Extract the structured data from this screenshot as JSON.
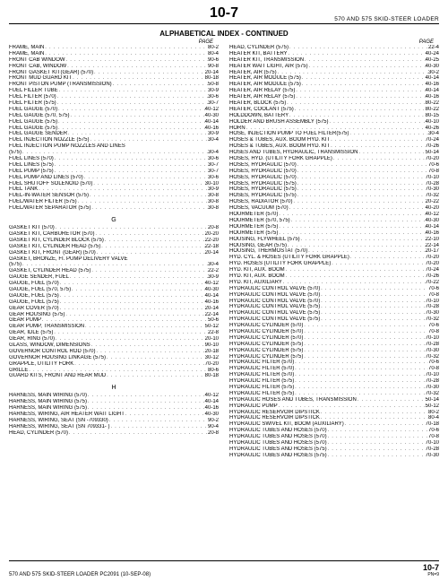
{
  "header": {
    "page_number_top": "10-7",
    "doc_title": "570 AND 575 SKID-STEER LOADER",
    "section_title": "ALPHABETICAL INDEX - CONTINUED",
    "page_label": "PAGE"
  },
  "left": {
    "groups": [
      {
        "letter": null,
        "rows": [
          [
            "FRAME, MAIN",
            "80-2"
          ],
          [
            "FRAME, MAIN",
            "80-4"
          ],
          [
            "FRONT CAB WINDOW",
            "90-6"
          ],
          [
            "FRONT CAB, WINDOW",
            "90-8"
          ],
          [
            "FRONT GASKET KIT(GEAR) (570)",
            "20-14"
          ],
          [
            "FRONT MUD GUARD KIT",
            "80-18"
          ],
          [
            "FRONT PISTON PUMP (TRANSMISSION)",
            "50-8"
          ],
          [
            "FUEL FILLER TUBE",
            "30-9"
          ],
          [
            "FUEL FILTER (570)",
            "30-6"
          ],
          [
            "FUEL FILTER (575)",
            "30-7"
          ],
          [
            "FUEL GAUGE (570)",
            "40-12"
          ],
          [
            "FUEL GAUGE (570, 575)",
            "40-30"
          ],
          [
            "FUEL GAUGE (575)",
            "40-14"
          ],
          [
            "FUEL GAUGE (575)",
            "40-16"
          ],
          [
            "FUEL GAUGE SENDER",
            "30-9"
          ],
          [
            "FUEL INJECTION NOZZLE (575)",
            "30-4"
          ],
          [
            "FUEL INJECTION PUMP NOZZLES AND LINES",
            ""
          ],
          [
            "  (575)",
            "30-4"
          ],
          [
            "FUEL LINES (570)",
            "30-6"
          ],
          [
            "FUEL LINES (575)",
            "30-7"
          ],
          [
            "FUEL PUMP (575)",
            "30-7"
          ],
          [
            "FUEL PUMP AND LINES (570)",
            "30-6"
          ],
          [
            "FUEL SHUTOFF SOLENOID (570)",
            "30-10"
          ],
          [
            "FUEL TANK",
            "30-9"
          ],
          [
            "FUEL-IN-WATER SENSOR (575)",
            "30-8"
          ],
          [
            "FUEL/WATER FILTER (575)",
            "30-8"
          ],
          [
            "FUEL/WATER SEPARATOR (575)",
            "30-8"
          ]
        ]
      },
      {
        "letter": "G",
        "rows": [
          [
            "GASKET KIT (570)",
            "20-8"
          ],
          [
            "GASKET KIT, CARBURETOR (570)",
            "20-20"
          ],
          [
            "GASKET KIT, CYLINDER BLOCK (575)",
            "22-20"
          ],
          [
            "GASKET KIT, CYLINDER HEAD (575)",
            "22-18"
          ],
          [
            "GASKET KIT, FRONT (GEAR) (570)",
            "20-14"
          ],
          [
            "GASKET, BRONZE, FI. PUMP DELIVERY VALVE",
            ""
          ],
          [
            "  (575)",
            "30-4"
          ],
          [
            "GASKET, CYLINDER HEAD (575)",
            "22-2"
          ],
          [
            "GAUGE SENDER, FUEL",
            "30-9"
          ],
          [
            "GAUGE, FUEL (570)",
            "40-12"
          ],
          [
            "GAUGE, FUEL (570, 575)",
            "40-30"
          ],
          [
            "GAUGE, FUEL (575)",
            "40-14"
          ],
          [
            "GAUGE, FUEL (575)",
            "40-16"
          ],
          [
            "GEAR COVER (570)",
            "20-14"
          ],
          [
            "GEAR HOUSING (575)",
            "22-14"
          ],
          [
            "GEAR PUMP",
            "50-6"
          ],
          [
            "GEAR PUMP, TRANSMISSION",
            "50-12"
          ],
          [
            "GEAR, IDLE (575)",
            "22-8"
          ],
          [
            "GEAR, RING (570)",
            "20-10"
          ],
          [
            "GLASS, WINDOW, DIMENSIONS",
            "90-10"
          ],
          [
            "GOVERNOR CONTROL ROD (570)",
            "20-18"
          ],
          [
            "GOVERNOR HOUSING LINKAGE (575)",
            "30-12"
          ],
          [
            "GRAPPLE, UTILITY FORK",
            "70-20"
          ],
          [
            "GRILLE",
            "80-6"
          ],
          [
            "GUARD KITS, FRONT AND REAR MUD",
            "80-18"
          ]
        ]
      },
      {
        "letter": "H",
        "rows": [
          [
            "HARNESS, MAIN WIRING (570)",
            "40-12"
          ],
          [
            "HARNESS, MAIN WIRING (575)",
            "40-14"
          ],
          [
            "HARNESS, MAIN WIRING (575)",
            "40-16"
          ],
          [
            "HARNESS, WIRING, AIR HEATER WAIT LIGHT",
            "40-30"
          ],
          [
            "HARNESS, WIRING, SEAT (SN -709330)",
            "90-2"
          ],
          [
            "HARNESS, WIRING, SEAT (SN 709331- )",
            "90-4"
          ],
          [
            "HEAD, CYLINDER (570)",
            "20-8"
          ]
        ]
      }
    ]
  },
  "right": {
    "groups": [
      {
        "letter": null,
        "rows": [
          [
            "HEAD, CYLINDER (575)",
            "22-4"
          ],
          [
            "HEATER KIT, BATTERY",
            "40-24"
          ],
          [
            "HEATER KIT, TRANSMISSION",
            "40-25"
          ],
          [
            "HEATER WAIT LIGHT, AIR (575)",
            "40-30"
          ],
          [
            "HEATER, AIR (575)",
            "30-2"
          ],
          [
            "HEATER, AIR MODULE (575)",
            "40-14"
          ],
          [
            "HEATER, AIR MODULE (575)",
            "40-16"
          ],
          [
            "HEATER, AIR RELAY (575)",
            "40-14"
          ],
          [
            "HEATER, AIR RELAY (575)",
            "40-16"
          ],
          [
            "HEATER, BLOCK (575)",
            "80-22"
          ],
          [
            "HEATER, COOLANT (575)",
            "80-22"
          ],
          [
            "HOLDDOWN, BATTERY",
            "80-15"
          ],
          [
            "HOLDER AND BRUSH ASSEMBLY (575)",
            "40-10"
          ],
          [
            "HORN",
            "40-26"
          ],
          [
            "HOSE, INJECTION PUMP TO FUEL FILTER(575)",
            "30-4"
          ],
          [
            "HOSES & TUBES, AUX. BOOM HYD. KIT",
            "70-24"
          ],
          [
            "HOSES & TUBES, AUX. BOOM HYD. KIT",
            "70-26"
          ],
          [
            "HOSES AND TUBES, HYDRAULIC, TRANSMISSION",
            "50-14"
          ],
          [
            "HOSES, HYD. (UTILITY FORK GRAPPLE)",
            "70-20"
          ],
          [
            "HOSES, HYDRAULIC (570)",
            "70-6"
          ],
          [
            "HOSES, HYDRAULIC (570)",
            "70-8"
          ],
          [
            "HOSES, HYDRAULIC (570)",
            "70-10"
          ],
          [
            "HOSES, HYDRAULIC (575)",
            "70-28"
          ],
          [
            "HOSES, HYDRAULIC (575)",
            "70-30"
          ],
          [
            "HOSES, HYDRAULIC (575)",
            "70-32"
          ],
          [
            "HOSES, RADIATOR (570)",
            "20-22"
          ],
          [
            "HOSES, VACUUM (570)",
            "40-20"
          ],
          [
            "HOURMETER (570)",
            "40-12"
          ],
          [
            "HOURMETER (570, 575)",
            "40-30"
          ],
          [
            "HOURMETER (575)",
            "40-14"
          ],
          [
            "HOURMETER (575)",
            "40-16"
          ],
          [
            "HOUSING, FLYWHEEL (575)",
            "22-10"
          ],
          [
            "HOUSING, GEAR (575)",
            "22-14"
          ],
          [
            "HOUSING, THERMOSTAT (570)",
            "20-17"
          ],
          [
            "HYD. CYL. & HOSES (UTILITY FORK GRAPPLE)",
            "70-20"
          ],
          [
            "HYD. HOSES (UTILITY FORK GRAPPLE)",
            "70-20"
          ],
          [
            "HYD. KIT, AUX. BOOM",
            "70-24"
          ],
          [
            "HYD. KIT, AUX. BOOM",
            "70-26"
          ],
          [
            "HYD. KIT, AUXILIARY",
            "70-22"
          ],
          [
            "HYDRAULIC CONTROL VALVE (570)",
            "70-6"
          ],
          [
            "HYDRAULIC CONTROL VALVE (570)",
            "70-8"
          ],
          [
            "HYDRAULIC CONTROL VALVE (570)",
            "70-10"
          ],
          [
            "HYDRAULIC CONTROL VALVE (575)",
            "70-28"
          ],
          [
            "HYDRAULIC CONTROL VALVE (575)",
            "70-30"
          ],
          [
            "HYDRAULIC CONTROL VALVE (575)",
            "70-32"
          ],
          [
            "HYDRAULIC CYLINDER (570)",
            "70-6"
          ],
          [
            "HYDRAULIC CYLINDER (570)",
            "70-8"
          ],
          [
            "HYDRAULIC CYLINDER (570)",
            "70-10"
          ],
          [
            "HYDRAULIC CYLINDER (575)",
            "70-28"
          ],
          [
            "HYDRAULIC CYLINDER (575)",
            "70-30"
          ],
          [
            "HYDRAULIC CYLINDER (575)",
            "70-32"
          ],
          [
            "HYDRAULIC FILTER (570)",
            "70-6"
          ],
          [
            "HYDRAULIC FILTER (570)",
            "70-8"
          ],
          [
            "HYDRAULIC FILTER (570)",
            "70-10"
          ],
          [
            "HYDRAULIC FILTER (575)",
            "70-28"
          ],
          [
            "HYDRAULIC FILTER (575)",
            "70-30"
          ],
          [
            "HYDRAULIC FILTER (575)",
            "70-32"
          ],
          [
            "HYDRAULIC HOSES AND TUBES, TRANSMISSION",
            "50-14"
          ],
          [
            "HYDRAULIC PUMP",
            "50-12"
          ],
          [
            "HYDRAULIC RESERVOIR DIPSTICK",
            "80-2"
          ],
          [
            "HYDRAULIC RESERVOIR DIPSTICK",
            "80-4"
          ],
          [
            "HYDRAULIC SWIVEL KIT, BOOM (AUXILIARY)",
            "70-18"
          ],
          [
            "HYDRAULIC TUBES AND HOSES (570)",
            "70-6"
          ],
          [
            "HYDRAULIC TUBES AND HOSES (570)",
            "70-8"
          ],
          [
            "HYDRAULIC TUBES AND HOSES (570)",
            "70-10"
          ],
          [
            "HYDRAULIC TUBES AND HOSES (575)",
            "70-28"
          ],
          [
            "HYDRAULIC TUBES AND HOSES (575)",
            "70-30"
          ]
        ]
      }
    ]
  },
  "footer": {
    "left": "570 AND 575 SKID-STEER LOADER      PC2091      (10-SEP-08)",
    "right_big": "10-7",
    "right_small": "PN=9"
  }
}
